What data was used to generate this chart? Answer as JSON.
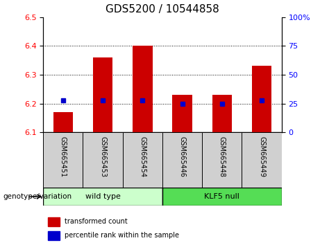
{
  "title": "GDS5200 / 10544858",
  "samples": [
    "GSM665451",
    "GSM665453",
    "GSM665454",
    "GSM665446",
    "GSM665448",
    "GSM665449"
  ],
  "red_values": [
    6.17,
    6.36,
    6.4,
    6.23,
    6.23,
    6.33
  ],
  "blue_values": [
    6.21,
    6.21,
    6.21,
    6.2,
    6.2,
    6.21
  ],
  "ylim_left": [
    6.1,
    6.5
  ],
  "ylim_right": [
    0,
    100
  ],
  "yticks_left": [
    6.1,
    6.2,
    6.3,
    6.4,
    6.5
  ],
  "yticks_right": [
    0,
    25,
    50,
    75,
    100
  ],
  "ytick_labels_right": [
    "0",
    "25",
    "50",
    "75",
    "100%"
  ],
  "group1_label": "wild type",
  "group2_label": "KLF5 null",
  "group1_color": "#ccffcc",
  "group2_color": "#55dd55",
  "bar_bottom": 6.1,
  "red_color": "#cc0000",
  "blue_color": "#0000cc",
  "legend_red_label": "transformed count",
  "legend_blue_label": "percentile rank within the sample",
  "sample_label_bg": "#d0d0d0",
  "genotype_label": "genotype/variation",
  "title_fontsize": 11,
  "tick_fontsize": 8,
  "sample_fontsize": 7,
  "legend_fontsize": 7,
  "group_fontsize": 8
}
